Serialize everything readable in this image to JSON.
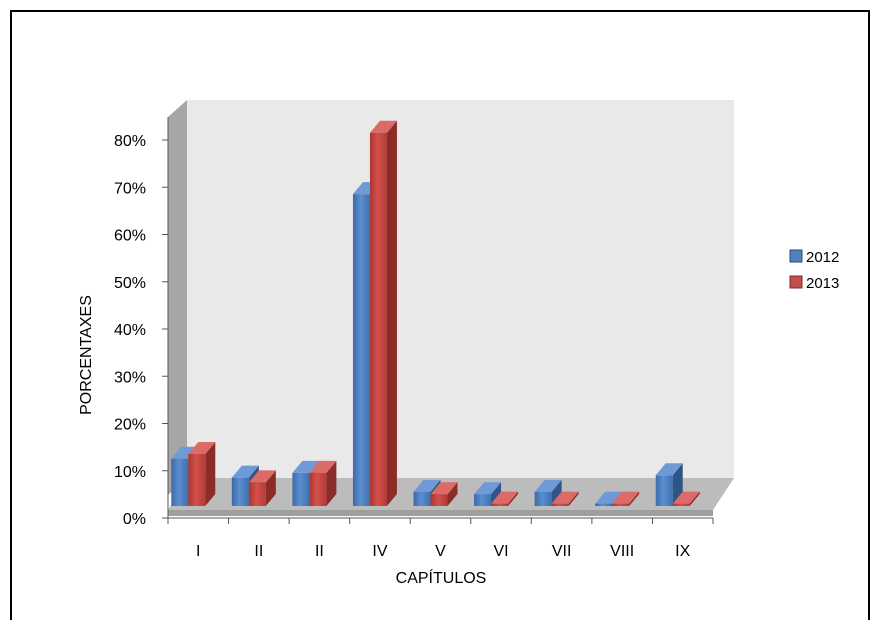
{
  "chart_data": {
    "type": "bar",
    "title": "",
    "xlabel": "CAPÍTULOS",
    "ylabel": "PORCENTAXES",
    "categories": [
      "I",
      "II",
      "II",
      "IV",
      "V",
      "VI",
      "VII",
      "VIII",
      "IX"
    ],
    "series": [
      {
        "name": "2012",
        "color": "#4f81bd",
        "values": [
          10,
          6,
          7,
          66,
          3,
          2.5,
          3,
          0.5,
          6.5
        ]
      },
      {
        "name": "2013",
        "color": "#c0504d",
        "values": [
          11,
          5,
          7,
          79,
          2.5,
          0.5,
          0.5,
          0.5,
          0.5
        ]
      }
    ],
    "ylim": [
      0,
      80
    ],
    "yticks": [
      0,
      10,
      20,
      30,
      40,
      50,
      60,
      70,
      80
    ],
    "ytick_labels": [
      "0%",
      "10%",
      "20%",
      "30%",
      "40%",
      "50%",
      "60%",
      "70%",
      "80%"
    ],
    "style": "3d-column",
    "grid": false,
    "legend_position": "right"
  }
}
